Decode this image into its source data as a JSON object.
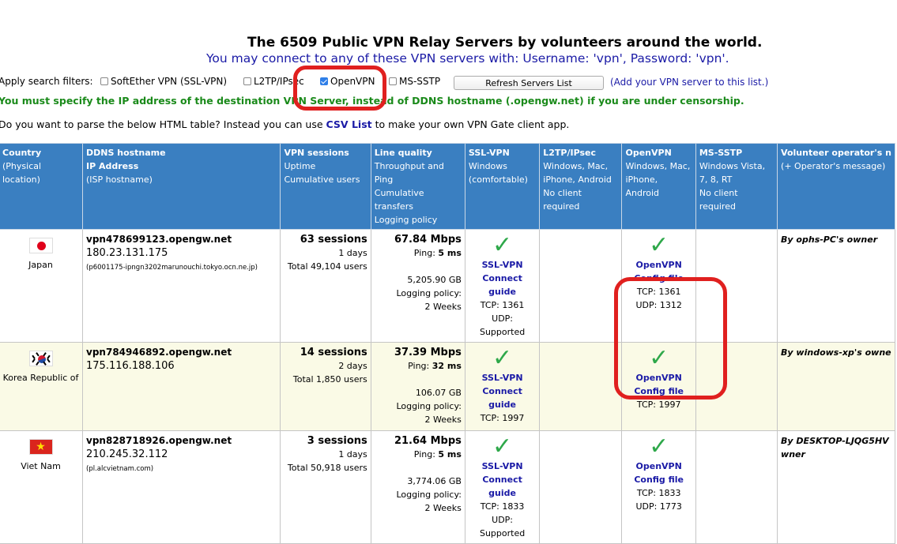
{
  "header": {
    "title": "The 6509 Public VPN Relay Servers by volunteers around the world.",
    "subtitle": "You may connect to any of these VPN servers with: Username: 'vpn', Password: 'vpn'."
  },
  "filters": {
    "label": "Apply search filters:",
    "options": [
      {
        "label": "SoftEther VPN (SSL-VPN)",
        "checked": false
      },
      {
        "label": "L2TP/IPsec",
        "checked": false
      },
      {
        "label": "OpenVPN",
        "checked": true
      },
      {
        "label": "MS-SSTP",
        "checked": false
      }
    ],
    "refresh_label": "Refresh Servers List",
    "add_link": "(Add your VPN server to this list.)"
  },
  "notice_censorship": "You must specify the IP address of the destination VPN Server, instead of DDNS hostname (.opengw.net) if you are under censorship.",
  "parse": {
    "prefix": "Do you want to parse the below HTML table? Instead you can use",
    "link": "CSV List",
    "suffix": "to make your own VPN Gate client app."
  },
  "table": {
    "headers": [
      {
        "title": "Country",
        "lines": [
          "(Physical location)"
        ]
      },
      {
        "title": "DDNS hostname",
        "lines": [
          "IP Address",
          "(ISP hostname)"
        ],
        "title_bold2": "IP Address"
      },
      {
        "title": "VPN sessions",
        "lines": [
          "Uptime",
          "Cumulative users"
        ]
      },
      {
        "title": "Line quality",
        "lines": [
          "Throughput and Ping",
          "Cumulative transfers",
          "Logging policy"
        ]
      },
      {
        "title": "SSL-VPN",
        "lines": [
          "Windows",
          "(comfortable)"
        ]
      },
      {
        "title": "L2TP/IPsec",
        "lines": [
          "Windows, Mac,",
          "iPhone, Android",
          "No client required"
        ]
      },
      {
        "title": "OpenVPN",
        "lines": [
          "Windows, Mac,",
          "iPhone, Android"
        ]
      },
      {
        "title": "MS-SSTP",
        "lines": [
          "Windows Vista,",
          "7, 8, RT",
          "No client required"
        ]
      },
      {
        "title": "Volunteer operator's n",
        "lines": [
          "(+ Operator's message)"
        ]
      }
    ],
    "rows": [
      {
        "country": "Japan",
        "flag": "japan",
        "host": "vpn478699123.opengw.net",
        "ip": "180.23.131.175",
        "isp": "(p6001175-ipngn3202marunouchi.tokyo.ocn.ne.jp)",
        "sessions": "63 sessions",
        "uptime": "1 days",
        "users": "Total 49,104 users",
        "speed": "67.84 Mbps",
        "ping_label": "Ping:",
        "ping": "5 ms",
        "transfer": "5,205.90 GB",
        "logging_label": "Logging policy:",
        "logging": "2 Weeks",
        "ssl_label": "SSL-VPN",
        "ssl_guide": "Connect guide",
        "ssl_tcp": "TCP: 1361",
        "ssl_udp": "UDP: Supported",
        "ovpn_label": "OpenVPN",
        "ovpn_cfg": "Config file",
        "ovpn_tcp": "TCP: 1361",
        "ovpn_udp": "UDP: 1312",
        "operator": "By ophs-PC's owner",
        "operator2": ""
      },
      {
        "country": "Korea Republic of",
        "flag": "korea",
        "host": "vpn784946892.opengw.net",
        "ip": "175.116.188.106",
        "isp": "",
        "sessions": "14 sessions",
        "uptime": "2 days",
        "users": "Total 1,850 users",
        "speed": "37.39 Mbps",
        "ping_label": "Ping:",
        "ping": "32 ms",
        "transfer": "106.07 GB",
        "logging_label": "Logging policy:",
        "logging": "2 Weeks",
        "ssl_label": "SSL-VPN",
        "ssl_guide": "Connect guide",
        "ssl_tcp": "TCP: 1997",
        "ssl_udp": "",
        "ovpn_label": "OpenVPN",
        "ovpn_cfg": "Config file",
        "ovpn_tcp": "TCP: 1997",
        "ovpn_udp": "",
        "operator": "By windows-xp's owne",
        "operator2": ""
      },
      {
        "country": "Viet Nam",
        "flag": "vietnam",
        "host": "vpn828718926.opengw.net",
        "ip": "210.245.32.112",
        "isp": "(pl.alcvietnam.com)",
        "sessions": "3 sessions",
        "uptime": "1 days",
        "users": "Total 50,918 users",
        "speed": "21.64 Mbps",
        "ping_label": "Ping:",
        "ping": "5 ms",
        "transfer": "3,774.06 GB",
        "logging_label": "Logging policy:",
        "logging": "2 Weeks",
        "ssl_label": "SSL-VPN",
        "ssl_guide": "Connect guide",
        "ssl_tcp": "TCP: 1833",
        "ssl_udp": "UDP: Supported",
        "ovpn_label": "OpenVPN",
        "ovpn_cfg": "Config file",
        "ovpn_tcp": "TCP: 1833",
        "ovpn_udp": "UDP: 1773",
        "operator": "By DESKTOP-LJQG5HV",
        "operator2": "wner"
      }
    ]
  },
  "colors": {
    "header_bg": "#3a7fc1",
    "annotation": "#e0201f",
    "check": "#2ea84a",
    "link": "#1a1aa6",
    "notice": "#1a8a1a"
  },
  "icons": {
    "check": "check-icon"
  }
}
